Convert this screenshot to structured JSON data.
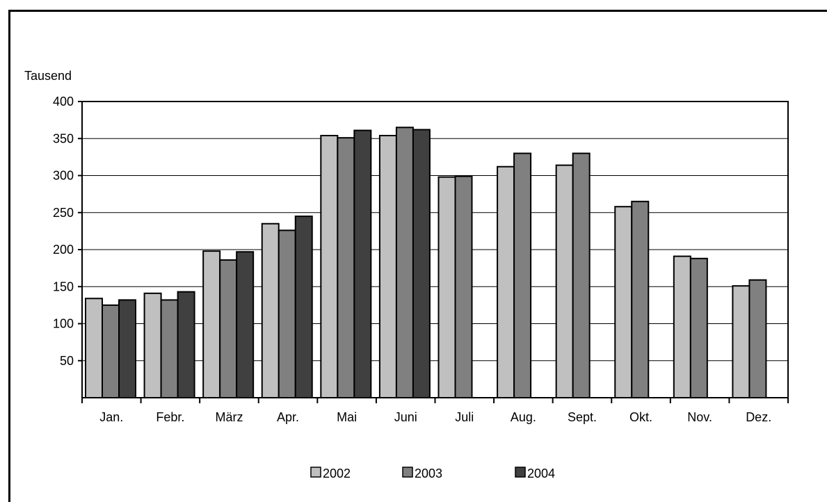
{
  "chart_data": {
    "type": "bar",
    "title": "",
    "ylabel": "Tausend",
    "xlabel": "",
    "ylim": [
      0,
      400
    ],
    "yticks": [
      "50",
      "100",
      "150",
      "200",
      "250",
      "300",
      "350",
      "400"
    ],
    "categories": [
      "Jan.",
      "Febr.",
      "März",
      "Apr.",
      "Mai",
      "Juni",
      "Juli",
      "Aug.",
      "Sept.",
      "Okt.",
      "Nov.",
      "Dez."
    ],
    "grid": true,
    "legend_position": "bottom",
    "series": [
      {
        "name": "2002",
        "color": "#c0c0c0",
        "values": [
          134,
          141,
          198,
          235,
          354,
          354,
          298,
          312,
          314,
          258,
          191,
          151
        ]
      },
      {
        "name": "2003",
        "color": "#808080",
        "values": [
          125,
          132,
          186,
          226,
          351,
          365,
          299,
          330,
          330,
          265,
          188,
          159
        ]
      },
      {
        "name": "2004",
        "color": "#404040",
        "values": [
          132,
          143,
          197,
          245,
          361,
          362,
          null,
          null,
          null,
          null,
          null,
          null
        ]
      }
    ]
  }
}
